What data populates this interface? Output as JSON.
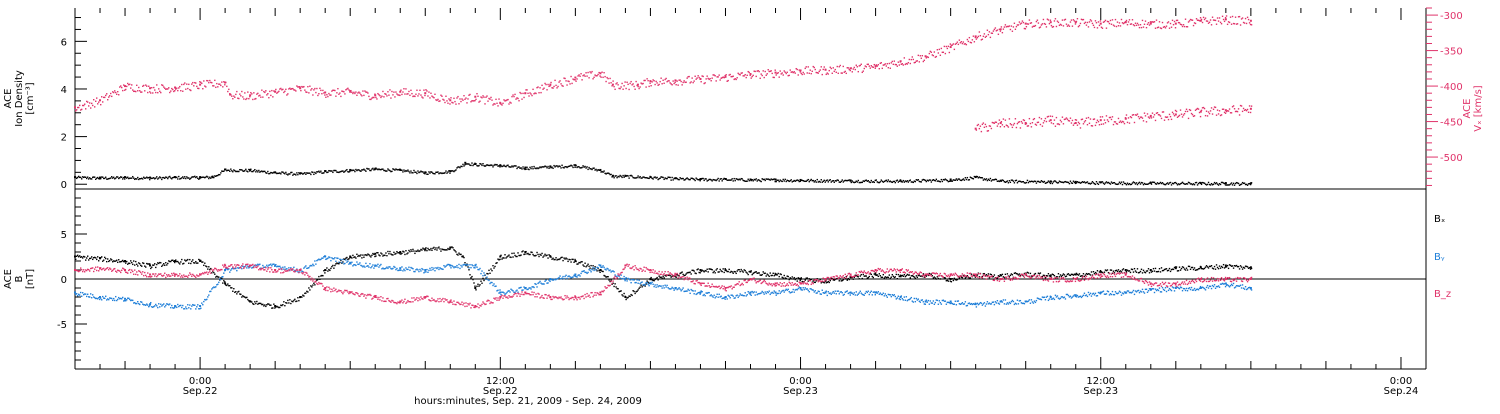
{
  "chart_data": [
    {
      "type": "scatter",
      "panel": "top",
      "left_axis": {
        "label_lines": [
          "ACE",
          "Ion Density",
          "[cm⁻³]"
        ],
        "ticks": [
          0,
          2,
          4,
          6
        ],
        "range": [
          -0.2,
          7.4
        ]
      },
      "right_axis": {
        "label_lines": [
          "ACE",
          "Vₓ [km/s]"
        ],
        "ticks": [
          -300,
          -350,
          -400,
          -450,
          -500
        ],
        "range": [
          -545,
          -290
        ],
        "color": "#e0336a"
      },
      "series": [
        {
          "axis": "left",
          "color": "#000000",
          "points": [
            [
              -5,
              0.3
            ],
            [
              -4,
              0.28
            ],
            [
              -3,
              0.3
            ],
            [
              -2,
              0.28
            ],
            [
              -1,
              0.3
            ],
            [
              0,
              0.3
            ],
            [
              0.5,
              0.32
            ],
            [
              1,
              0.62
            ],
            [
              2,
              0.6
            ],
            [
              3,
              0.5
            ],
            [
              4,
              0.45
            ],
            [
              5,
              0.55
            ],
            [
              6,
              0.6
            ],
            [
              7,
              0.65
            ],
            [
              8,
              0.6
            ],
            [
              9,
              0.5
            ],
            [
              10,
              0.55
            ],
            [
              10.6,
              0.9
            ],
            [
              11,
              0.85
            ],
            [
              12,
              0.8
            ],
            [
              13,
              0.7
            ],
            [
              14,
              0.75
            ],
            [
              15,
              0.8
            ],
            [
              16,
              0.6
            ],
            [
              16.5,
              0.35
            ],
            [
              17,
              0.35
            ],
            [
              18,
              0.3
            ],
            [
              19,
              0.25
            ],
            [
              20,
              0.22
            ],
            [
              21,
              0.22
            ],
            [
              22,
              0.2
            ],
            [
              23,
              0.2
            ],
            [
              24,
              0.18
            ],
            [
              26,
              0.16
            ],
            [
              28,
              0.15
            ],
            [
              30,
              0.2
            ],
            [
              31,
              0.3
            ],
            [
              32,
              0.15
            ],
            [
              34,
              0.12
            ],
            [
              35,
              0.1
            ],
            [
              36,
              0.08
            ],
            [
              38,
              0.06
            ],
            [
              40,
              0.05
            ],
            [
              41,
              0.05
            ],
            [
              42,
              0.04
            ]
          ]
        },
        {
          "axis": "right",
          "color": "#e0336a",
          "points": [
            [
              -5,
              -430
            ],
            [
              -4,
              -420
            ],
            [
              -3,
              -400
            ],
            [
              -2,
              -403
            ],
            [
              -1,
              -402
            ],
            [
              0,
              -398
            ],
            [
              1,
              -395
            ],
            [
              1.2,
              -412
            ],
            [
              2,
              -413
            ],
            [
              3,
              -408
            ],
            [
              4,
              -403
            ],
            [
              5,
              -409
            ],
            [
              6,
              -408
            ],
            [
              7,
              -413
            ],
            [
              8,
              -408
            ],
            [
              9,
              -410
            ],
            [
              10,
              -420
            ],
            [
              11,
              -415
            ],
            [
              12,
              -424
            ],
            [
              13,
              -410
            ],
            [
              14,
              -398
            ],
            [
              15,
              -388
            ],
            [
              16,
              -382
            ],
            [
              16.5,
              -398
            ],
            [
              17.5,
              -398
            ],
            [
              18,
              -393
            ],
            [
              19,
              -392
            ],
            [
              20,
              -390
            ],
            [
              21,
              -387
            ],
            [
              22,
              -383
            ],
            [
              23,
              -381
            ],
            [
              24,
              -378
            ],
            [
              25,
              -377
            ],
            [
              26,
              -375
            ],
            [
              27,
              -372
            ],
            [
              28,
              -365
            ],
            [
              29,
              -358
            ],
            [
              30,
              -345
            ],
            [
              31,
              -330
            ],
            [
              32,
              -320
            ],
            [
              33,
              -312
            ],
            [
              34,
              -310
            ],
            [
              35,
              -310
            ],
            [
              36,
              -312
            ],
            [
              37,
              -310
            ],
            [
              38,
              -312
            ],
            [
              39,
              -312
            ],
            [
              40,
              -308
            ],
            [
              41,
              -306
            ],
            [
              42,
              -308
            ]
          ]
        },
        {
          "axis": "right",
          "color": "#e0336a",
          "points": [
            [
              31,
              -460
            ],
            [
              32,
              -452
            ],
            [
              33,
              -452
            ],
            [
              34,
              -448
            ],
            [
              35,
              -452
            ],
            [
              36,
              -448
            ],
            [
              37,
              -446
            ],
            [
              38,
              -442
            ],
            [
              39,
              -440
            ],
            [
              40,
              -436
            ],
            [
              41,
              -434
            ],
            [
              42,
              -432
            ]
          ]
        }
      ]
    },
    {
      "type": "scatter",
      "panel": "bottom",
      "left_axis": {
        "label_lines": [
          "ACE",
          "B",
          "[nT]"
        ],
        "ticks": [
          -5,
          0,
          5
        ],
        "range": [
          -10,
          10
        ]
      },
      "x_ticks": [
        {
          "h": 0,
          "line1": "0:00",
          "line2": "Sep.22"
        },
        {
          "h": 12,
          "line1": "12:00",
          "line2": "Sep.22"
        },
        {
          "h": 24,
          "line1": "0:00",
          "line2": "Sep.23"
        },
        {
          "h": 36,
          "line1": "12:00",
          "line2": "Sep.23"
        },
        {
          "h": 48,
          "line1": "0:00",
          "line2": "Sep.24"
        }
      ],
      "x_range_hours": [
        -5,
        49
      ],
      "x_title": "hours:minutes, Sep. 21, 2009 - Sep. 24, 2009",
      "legend": [
        {
          "text": "Bₓ",
          "color": "#000000"
        },
        {
          "text": "Bᵧ",
          "color": "#1f7fd8"
        },
        {
          "text": "B_z",
          "color": "#e0336a"
        }
      ],
      "series": [
        {
          "name": "Bx",
          "color": "#000000",
          "points": [
            [
              -5,
              2.5
            ],
            [
              -4,
              2.3
            ],
            [
              -3,
              2.0
            ],
            [
              -2,
              1.5
            ],
            [
              -1,
              2.0
            ],
            [
              0,
              2.0
            ],
            [
              1,
              -0.5
            ],
            [
              2,
              -2.5
            ],
            [
              3,
              -3.0
            ],
            [
              4,
              -2.0
            ],
            [
              5,
              1.0
            ],
            [
              6,
              2.5
            ],
            [
              7,
              2.8
            ],
            [
              8,
              3.0
            ],
            [
              9,
              3.3
            ],
            [
              10,
              3.5
            ],
            [
              10.5,
              2.5
            ],
            [
              11,
              -1.0
            ],
            [
              12,
              2.5
            ],
            [
              13,
              3.0
            ],
            [
              14,
              2.5
            ],
            [
              15,
              2.0
            ],
            [
              16,
              1.0
            ],
            [
              17,
              -2.0
            ],
            [
              18,
              0.0
            ],
            [
              19,
              0.5
            ],
            [
              20,
              1.0
            ],
            [
              21,
              1.0
            ],
            [
              22,
              0.8
            ],
            [
              23,
              0.5
            ],
            [
              24,
              0.0
            ],
            [
              25,
              -0.2
            ],
            [
              26,
              0.2
            ],
            [
              27,
              0.5
            ],
            [
              28,
              0.3
            ],
            [
              29,
              0.5
            ],
            [
              30,
              0.0
            ],
            [
              31,
              0.5
            ],
            [
              32,
              0.4
            ],
            [
              33,
              0.6
            ],
            [
              34,
              0.4
            ],
            [
              35,
              0.5
            ],
            [
              36,
              0.8
            ],
            [
              37,
              1.0
            ],
            [
              38,
              1.0
            ],
            [
              39,
              1.2
            ],
            [
              40,
              1.3
            ],
            [
              41,
              1.5
            ],
            [
              42,
              1.3
            ]
          ]
        },
        {
          "name": "By",
          "color": "#1f7fd8",
          "points": [
            [
              -5,
              -1.5
            ],
            [
              -4,
              -2.0
            ],
            [
              -3,
              -2.2
            ],
            [
              -2,
              -2.8
            ],
            [
              -1,
              -3.0
            ],
            [
              0,
              -3.0
            ],
            [
              1,
              1.0
            ],
            [
              2,
              1.5
            ],
            [
              3,
              1.5
            ],
            [
              4,
              1.0
            ],
            [
              5,
              2.5
            ],
            [
              6,
              1.8
            ],
            [
              7,
              1.5
            ],
            [
              8,
              1.2
            ],
            [
              9,
              1.0
            ],
            [
              10,
              1.5
            ],
            [
              11,
              1.5
            ],
            [
              12,
              -1.5
            ],
            [
              13,
              -1.0
            ],
            [
              14,
              0.0
            ],
            [
              15,
              0.5
            ],
            [
              16,
              1.5
            ],
            [
              17,
              0.0
            ],
            [
              18,
              -0.5
            ],
            [
              19,
              -1.0
            ],
            [
              20,
              -1.5
            ],
            [
              21,
              -2.0
            ],
            [
              22,
              -1.5
            ],
            [
              23,
              -1.5
            ],
            [
              24,
              -1.0
            ],
            [
              25,
              -1.5
            ],
            [
              26,
              -1.5
            ],
            [
              27,
              -1.5
            ],
            [
              28,
              -2.0
            ],
            [
              29,
              -2.5
            ],
            [
              30,
              -2.5
            ],
            [
              31,
              -2.8
            ],
            [
              32,
              -2.5
            ],
            [
              33,
              -2.5
            ],
            [
              34,
              -2.0
            ],
            [
              35,
              -1.8
            ],
            [
              36,
              -1.5
            ],
            [
              37,
              -1.5
            ],
            [
              38,
              -1.2
            ],
            [
              39,
              -1.0
            ],
            [
              40,
              -1.0
            ],
            [
              41,
              -0.5
            ],
            [
              42,
              -1.0
            ]
          ]
        },
        {
          "name": "Bz",
          "color": "#e0336a",
          "points": [
            [
              -5,
              1.0
            ],
            [
              -4,
              1.2
            ],
            [
              -3,
              1.0
            ],
            [
              -2,
              0.5
            ],
            [
              -1,
              0.5
            ],
            [
              0,
              0.5
            ],
            [
              1,
              1.5
            ],
            [
              2,
              1.5
            ],
            [
              3,
              1.0
            ],
            [
              4,
              1.0
            ],
            [
              5,
              -1.0
            ],
            [
              6,
              -1.5
            ],
            [
              7,
              -2.0
            ],
            [
              8,
              -2.5
            ],
            [
              9,
              -2.0
            ],
            [
              10,
              -2.5
            ],
            [
              11,
              -3.0
            ],
            [
              12,
              -2.0
            ],
            [
              13,
              -1.5
            ],
            [
              14,
              -2.0
            ],
            [
              15,
              -2.0
            ],
            [
              16,
              -1.5
            ],
            [
              17,
              1.5
            ],
            [
              18,
              1.0
            ],
            [
              19,
              0.5
            ],
            [
              20,
              -0.5
            ],
            [
              21,
              -1.0
            ],
            [
              22,
              0.0
            ],
            [
              23,
              -0.5
            ],
            [
              24,
              -0.5
            ],
            [
              25,
              0.0
            ],
            [
              26,
              0.5
            ],
            [
              27,
              1.0
            ],
            [
              28,
              1.0
            ],
            [
              29,
              0.5
            ],
            [
              30,
              0.5
            ],
            [
              31,
              0.5
            ],
            [
              32,
              0.0
            ],
            [
              33,
              0.5
            ],
            [
              34,
              0.0
            ],
            [
              35,
              0.0
            ],
            [
              36,
              0.5
            ],
            [
              37,
              0.5
            ],
            [
              38,
              -0.5
            ],
            [
              39,
              -0.5
            ],
            [
              40,
              0.0
            ],
            [
              41,
              0.0
            ],
            [
              42,
              0.0
            ]
          ]
        }
      ]
    }
  ]
}
